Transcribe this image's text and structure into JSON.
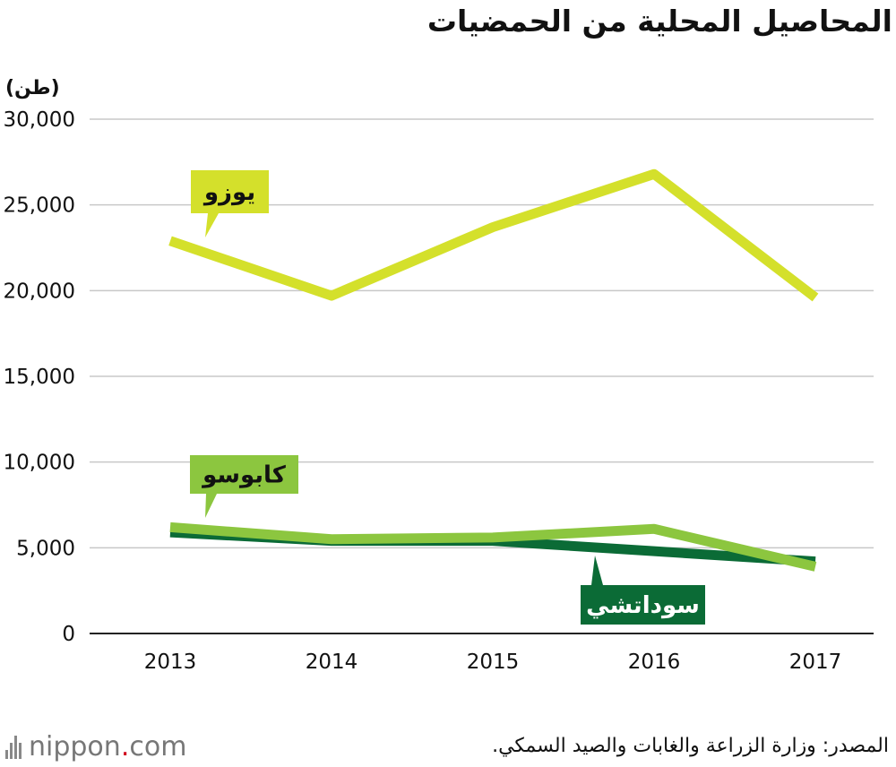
{
  "title": "المحاصيل المحلية من الحمضيات",
  "unit": "(طن)",
  "source": "المصدر: وزارة الزراعة والغابات والصيد السمكي.",
  "logo": {
    "name": "nippon",
    "dot": ".",
    "suffix": "com"
  },
  "chart_data": {
    "type": "line",
    "title": "المحاصيل المحلية من الحمضيات",
    "ylabel": "(طن)",
    "xlabel": "",
    "categories": [
      "2013",
      "2014",
      "2015",
      "2016",
      "2017"
    ],
    "ylim": [
      0,
      30000
    ],
    "yticks": [
      0,
      5000,
      10000,
      15000,
      20000,
      25000,
      30000
    ],
    "ytick_labels": [
      "0",
      "5,000",
      "10,000",
      "15,000",
      "20,000",
      "25,000",
      "30,000"
    ],
    "grid": true,
    "series": [
      {
        "name": "يوزو",
        "values": [
          22900,
          19700,
          23700,
          26800,
          19600
        ],
        "color": "#d4e02b",
        "label_color": "#d4e02b",
        "label_text_color": "#111111"
      },
      {
        "name": "سوداتشي",
        "values": [
          5900,
          5400,
          5400,
          4800,
          4200
        ],
        "color": "#0b6b36",
        "label_color": "#0b6b36",
        "label_text_color": "#ffffff"
      },
      {
        "name": "كابوسو",
        "values": [
          6200,
          5500,
          5600,
          6100,
          3900
        ],
        "color": "#8cc63f",
        "label_color": "#8cc63f",
        "label_text_color": "#111111"
      }
    ]
  }
}
